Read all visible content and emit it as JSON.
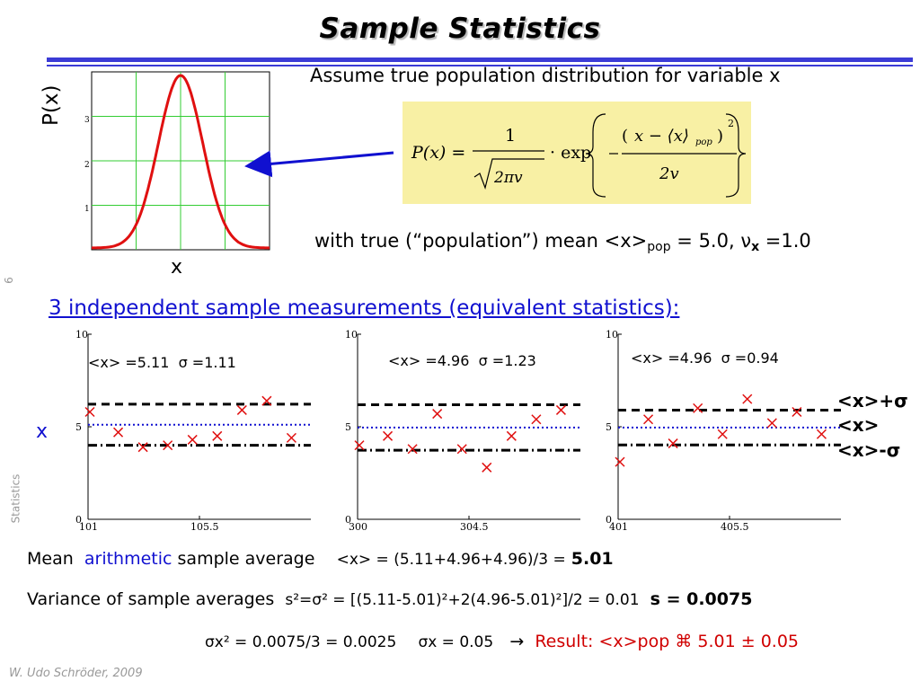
{
  "title": "Sample Statistics",
  "assume_text": "Assume true population distribution for variable x",
  "px_label": "P(x)",
  "x_label": "x",
  "gauss_ticks": [
    "1",
    "2",
    "3"
  ],
  "with_true": {
    "prefix": "with true (“population”) mean <x>",
    "sub": "pop",
    "middle": " = 5.0, ",
    "nu": "ν",
    "nu_sub": "x",
    "suffix": " =1.0"
  },
  "formula": {
    "lhs": "P(x) =",
    "numerator": "1",
    "denominator": "2πv",
    "exp": "· exp",
    "inner_num": "x − ⟨x⟩",
    "inner_sub": "pop",
    "inner_den": "2v"
  },
  "side_number": "6",
  "side_label": "Statistics",
  "heading3": "3 independent sample measurements (equivalent statistics):",
  "x_axis_label": "x",
  "panels": [
    {
      "mean_text": "<x> =5.11",
      "sigma_text": "σ =1.11",
      "x_ticks": [
        "101",
        "105.5"
      ]
    },
    {
      "mean_text": "<x> =4.96",
      "sigma_text": "σ =1.23",
      "x_ticks": [
        "300",
        "304.5"
      ]
    },
    {
      "mean_text": "<x> =4.96",
      "sigma_text": "σ =0.94",
      "x_ticks": [
        "401",
        "405.5"
      ]
    }
  ],
  "y_ticks": [
    "0",
    "5",
    "10"
  ],
  "legend": {
    "plus": "<x>+σ",
    "mean": "<x>",
    "minus": "<x>-σ"
  },
  "line1": {
    "a": "Mean",
    "b": "arithmetic",
    "c": "sample average",
    "d": "<x> = (5.11+4.96+4.96)/3 =",
    "e": "5.01"
  },
  "line2": {
    "a": "Variance of sample averages",
    "b": "s²=σ² = [(5.11-5.01)²+2(4.96-5.01)²]/2 = 0.01",
    "c": "s = 0.0075"
  },
  "line3": {
    "a": "σx² = 0.0075/3 = 0.0025",
    "b": "σx = 0.05",
    "arrow": "→",
    "result": "Result: <x>pop ⌘ 5.01 ± 0.05"
  },
  "footer": "W. Udo Schröder, 2009",
  "colors": {
    "accent_blue": "#1010d0",
    "red": "#d00000",
    "formula_bg": "#f8f0a4",
    "grid_green": "#33cc33"
  },
  "chart_data": [
    {
      "type": "line",
      "title": "",
      "xlabel": "x",
      "ylabel": "P(x)",
      "series": [
        {
          "values_desc": "gaussian",
          "mean": 5.0,
          "sigma": 1.0
        }
      ],
      "ylim": [
        0,
        4
      ],
      "yticks": [
        1,
        2,
        3
      ],
      "grid": true
    },
    {
      "type": "scatter",
      "xlim": [
        101,
        110
      ],
      "ylim": [
        0,
        10
      ],
      "x": [
        101,
        102,
        103,
        104,
        105,
        106,
        107,
        108,
        109
      ],
      "y": [
        5.8,
        4.7,
        3.9,
        4.0,
        4.3,
        4.5,
        5.9,
        6.4,
        4.4
      ],
      "mean": 5.11,
      "sigma": 1.11
    },
    {
      "type": "scatter",
      "xlim": [
        300,
        309
      ],
      "ylim": [
        0,
        10
      ],
      "x": [
        300,
        301,
        302,
        303,
        304,
        305,
        306,
        307,
        308
      ],
      "y": [
        4.0,
        4.5,
        3.8,
        5.7,
        3.8,
        2.8,
        4.5,
        5.4,
        5.9
      ],
      "mean": 4.96,
      "sigma": 1.23
    },
    {
      "type": "scatter",
      "xlim": [
        401,
        410
      ],
      "ylim": [
        0,
        10
      ],
      "x": [
        401,
        402,
        403,
        404,
        405,
        406,
        407,
        408,
        409
      ],
      "y": [
        3.1,
        5.4,
        4.1,
        6.0,
        4.6,
        6.5,
        5.2,
        5.8,
        4.6
      ],
      "mean": 4.96,
      "sigma": 0.94
    }
  ]
}
